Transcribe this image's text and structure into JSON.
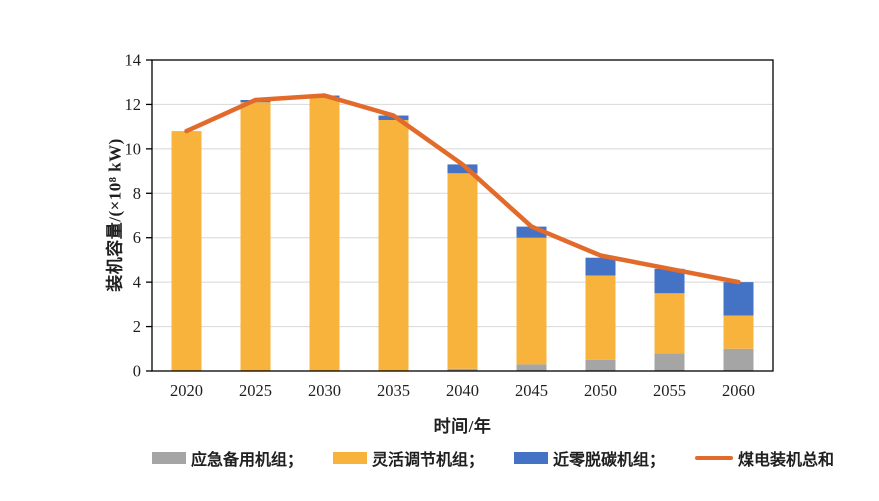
{
  "chart_data": {
    "type": "bar",
    "stacked": true,
    "title": "",
    "categories": [
      "2020",
      "2025",
      "2030",
      "2035",
      "2040",
      "2045",
      "2050",
      "2055",
      "2060"
    ],
    "series": [
      {
        "name": "应急备用机组",
        "kind": "bar",
        "color": "#A5A5A5",
        "values": [
          0,
          0,
          0,
          0,
          0.1,
          0.3,
          0.5,
          0.8,
          1.0
        ]
      },
      {
        "name": "灵活调节机组",
        "kind": "bar",
        "color": "#F8B33C",
        "values": [
          10.8,
          12.1,
          12.3,
          11.3,
          8.8,
          5.7,
          3.8,
          2.7,
          1.5
        ]
      },
      {
        "name": "近零脱碳机组",
        "kind": "bar",
        "color": "#4472C4",
        "values": [
          0,
          0.1,
          0.1,
          0.2,
          0.4,
          0.5,
          0.8,
          1.1,
          1.5
        ]
      },
      {
        "name": "煤电装机总和",
        "kind": "line",
        "color": "#E26B2B",
        "values": [
          10.8,
          12.2,
          12.4,
          11.5,
          9.3,
          6.5,
          5.2,
          4.6,
          4.0
        ]
      }
    ],
    "xlabel": "时间/年",
    "ylabel": "装机容量/(×10⁸ kW)",
    "ylim": [
      0,
      14
    ],
    "y_ticks": [
      0,
      2,
      4,
      6,
      8,
      10,
      12,
      14
    ],
    "grid": true,
    "legend_position": "bottom"
  },
  "legend": {
    "items": [
      {
        "label": "应急备用机组；",
        "swatch": "bar",
        "color": "#A5A5A5"
      },
      {
        "label": "灵活调节机组；",
        "swatch": "bar",
        "color": "#F8B33C"
      },
      {
        "label": "近零脱碳机组；",
        "swatch": "bar",
        "color": "#4472C4"
      },
      {
        "label": "煤电装机总和",
        "swatch": "line",
        "color": "#E26B2B"
      }
    ]
  },
  "colors": {
    "grid": "#D8D8D8",
    "axis": "#000000",
    "text": "#1F1F1F",
    "background": "#FFFFFF"
  }
}
